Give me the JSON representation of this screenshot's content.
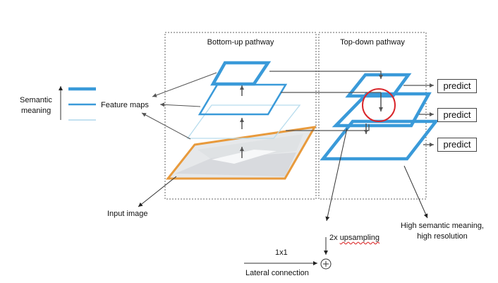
{
  "sections": {
    "bottom_up": "Bottom-up pathway",
    "top_down": "Top-down pathway"
  },
  "labels": {
    "semantic_meaning_line1": "Semantic",
    "semantic_meaning_line2": "meaning",
    "feature_maps": "Feature maps",
    "input_image": "Input image",
    "upsampling": "2x upsampling",
    "one_by_one": "1x1",
    "lateral_connection": "Lateral connection",
    "high_semantic_line1": "High semantic meaning,",
    "high_semantic_line2": "high resolution"
  },
  "predict": [
    "predict",
    "predict",
    "predict"
  ],
  "colors": {
    "feature_blue": "#3a9ad9",
    "input_orange": "#e89a3c",
    "highlight_red": "#d9262b",
    "arrow": "#555555",
    "dashed_border": "#666666"
  }
}
